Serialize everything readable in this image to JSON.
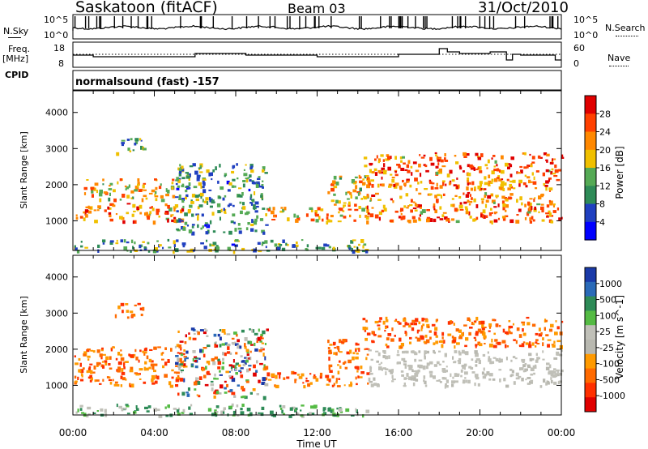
{
  "header": {
    "station": "Saskatoon (fitACF)",
    "beam": "Beam 03",
    "date": "31/Oct/2010"
  },
  "nsky": {
    "left_label": "N.Sky",
    "left_ticks": [
      "10^5",
      "10^0"
    ],
    "right_label": "N.Search",
    "right_ticks": [
      "10^5",
      "10^0"
    ]
  },
  "freq": {
    "left_label_1": "Freq.",
    "left_label_2": "[MHz]",
    "left_ticks": [
      "18",
      "8"
    ],
    "right_label": "Nave",
    "right_ticks": [
      "60",
      "0"
    ]
  },
  "cpid": {
    "label": "CPID",
    "value": "normalsound (fast) -157"
  },
  "x_axis": {
    "label": "Time UT",
    "ticks": [
      "00:00",
      "04:00",
      "08:00",
      "12:00",
      "16:00",
      "20:00",
      "00:00"
    ]
  },
  "colors": {
    "power_scale": [
      "#0000ff",
      "#2040c0",
      "#2e8b57",
      "#55aa55",
      "#f0c000",
      "#ff8800",
      "#ff4000",
      "#e00000"
    ],
    "velocity_scale": [
      "#1a3aa8",
      "#2a6ab8",
      "#2e8b57",
      "#55bb44",
      "#c0c0b8",
      "#b8b8b0",
      "#ff9a00",
      "#ff6a00",
      "#ff3000",
      "#e00000"
    ]
  },
  "chart_data": [
    {
      "type": "heatmap",
      "title": "Power",
      "ylabel": "Slant Range [km]",
      "xlabel": "",
      "y_ticks": [
        1000,
        2000,
        3000,
        4000
      ],
      "xlim_hours": [
        0,
        24
      ],
      "ylim": [
        180,
        4600
      ],
      "colorbar": {
        "label": "Power [dB]",
        "ticks": [
          "4",
          "8",
          "12",
          "16",
          "20",
          "24",
          "28"
        ]
      },
      "bands": [
        {
          "t0": 0.0,
          "t1": 5.5,
          "r0": 1000,
          "r1": 1500,
          "level": "high"
        },
        {
          "t0": 0.5,
          "t1": 5.0,
          "r0": 1600,
          "r1": 2200,
          "level": "mid"
        },
        {
          "t0": 5.0,
          "t1": 9.5,
          "r0": 700,
          "r1": 2600,
          "level": "low"
        },
        {
          "t0": 9.5,
          "t1": 12.5,
          "r0": 1000,
          "r1": 1400,
          "level": "mid"
        },
        {
          "t0": 12.5,
          "t1": 14.5,
          "r0": 1000,
          "r1": 2300,
          "level": "mid"
        },
        {
          "t0": 14.2,
          "t1": 24.0,
          "r0": 1900,
          "r1": 2900,
          "level": "high"
        },
        {
          "t0": 14.2,
          "t1": 24.0,
          "r0": 1000,
          "r1": 1800,
          "level": "high"
        },
        {
          "t0": 2.0,
          "t1": 3.5,
          "r0": 2900,
          "r1": 3300,
          "level": "low"
        },
        {
          "t0": 0.0,
          "t1": 14.5,
          "r0": 180,
          "r1": 500,
          "level": "low"
        }
      ]
    },
    {
      "type": "heatmap",
      "title": "Velocity",
      "ylabel": "Slant Range [km]",
      "xlabel": "Time UT",
      "y_ticks": [
        1000,
        2000,
        3000,
        4000
      ],
      "xlim_hours": [
        0,
        24
      ],
      "ylim": [
        180,
        4600
      ],
      "colorbar": {
        "label": "Velocity [m s^-1]",
        "ticks": [
          "1000",
          "500",
          "100",
          "25",
          "-25",
          "-100",
          "-500",
          "-1000"
        ]
      },
      "bands": [
        {
          "t0": 0.0,
          "t1": 5.5,
          "r0": 1000,
          "r1": 2100,
          "level": "neg"
        },
        {
          "t0": 5.0,
          "t1": 9.5,
          "r0": 700,
          "r1": 2600,
          "level": "mixed"
        },
        {
          "t0": 9.5,
          "t1": 12.5,
          "r0": 1000,
          "r1": 1400,
          "level": "neg"
        },
        {
          "t0": 12.5,
          "t1": 14.5,
          "r0": 1000,
          "r1": 2300,
          "level": "neg"
        },
        {
          "t0": 14.2,
          "t1": 24.0,
          "r0": 2100,
          "r1": 2900,
          "level": "neg"
        },
        {
          "t0": 14.5,
          "t1": 24.0,
          "r0": 1000,
          "r1": 2000,
          "level": "zero"
        },
        {
          "t0": 2.0,
          "t1": 3.5,
          "r0": 2900,
          "r1": 3300,
          "level": "neg"
        },
        {
          "t0": 0.0,
          "t1": 14.5,
          "r0": 180,
          "r1": 500,
          "level": "pos"
        }
      ]
    }
  ]
}
